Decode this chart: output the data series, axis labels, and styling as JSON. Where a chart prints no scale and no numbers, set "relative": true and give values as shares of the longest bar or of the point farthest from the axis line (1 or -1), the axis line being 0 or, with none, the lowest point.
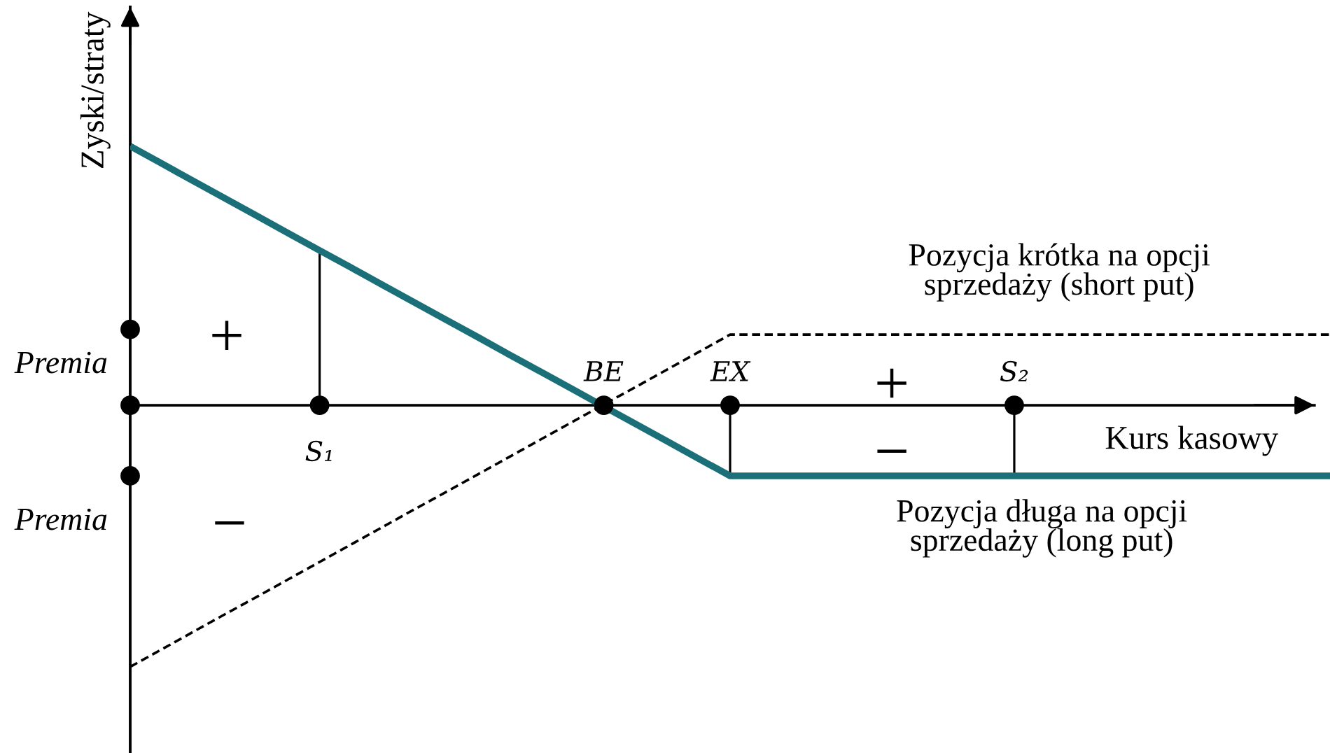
{
  "chart_data": {
    "type": "line",
    "relative": true,
    "xlabel": "Kurs kasowy",
    "ylabel": "Zyski/straty",
    "categories": [
      null,
      null,
      null,
      null,
      null,
      null,
      "S₁",
      null,
      null,
      null,
      null,
      null,
      null,
      null,
      null,
      "BE",
      null,
      null,
      null,
      "EX",
      null,
      null,
      null,
      null,
      null,
      null,
      null,
      null,
      "S₂",
      null,
      null,
      null,
      null,
      null,
      null,
      null,
      null,
      null,
      null
    ],
    "series": [
      {
        "name": "Pozycja długa na opcji\nsprzedaży (long put)",
        "color": "#1b6f78",
        "line_style": "solid",
        "values": [
          0.99,
          0.924,
          0.857,
          0.791,
          0.725,
          0.658,
          0.592,
          0.526,
          0.459,
          0.393,
          0.327,
          0.261,
          0.194,
          0.128,
          0.062,
          -0.005,
          -0.071,
          -0.137,
          -0.204,
          -0.27,
          -0.27,
          -0.27,
          -0.27,
          -0.27,
          -0.27,
          -0.27,
          -0.27,
          -0.27,
          -0.27,
          -0.27,
          -0.27,
          -0.27,
          -0.27,
          -0.27,
          -0.27,
          -0.27,
          -0.27,
          -0.27,
          -0.27
        ]
      },
      {
        "name": "Pozycja krótka na opcji\nsprzedaży (short put)",
        "color": "#000000",
        "line_style": "dashed",
        "values": [
          -1,
          -0.933,
          -0.866,
          -0.799,
          -0.733,
          -0.666,
          -0.599,
          -0.532,
          -0.465,
          -0.398,
          -0.332,
          -0.265,
          -0.198,
          -0.131,
          -0.064,
          0.003,
          0.069,
          0.136,
          0.203,
          0.27,
          0.27,
          0.27,
          0.27,
          0.27,
          0.27,
          0.27,
          0.27,
          0.27,
          0.27,
          0.27,
          0.27,
          0.27,
          0.27,
          0.27,
          0.27,
          0.27,
          0.27,
          0.27,
          0.27
        ]
      },
      {
        "type": "bar",
        "color": "#000000",
        "values": [
          null,
          null,
          null,
          null,
          null,
          null,
          0.59,
          null,
          null,
          null,
          null,
          null,
          null,
          null,
          null,
          null,
          null,
          null,
          null,
          -0.27,
          null,
          null,
          null,
          null,
          null,
          null,
          null,
          null,
          -0.27,
          null,
          null,
          null,
          null,
          null,
          null,
          null,
          null,
          null,
          null
        ]
      },
      {
        "type": "scatter",
        "color": "#000000",
        "marker": "circle",
        "values": [
          0,
          null,
          null,
          null,
          null,
          null,
          0,
          null,
          null,
          null,
          null,
          null,
          null,
          null,
          null,
          0,
          null,
          null,
          null,
          0,
          null,
          null,
          null,
          null,
          null,
          null,
          null,
          null,
          0,
          null,
          null,
          null,
          null,
          null,
          null,
          null,
          null,
          null,
          null
        ]
      },
      {
        "type": "scatter",
        "color": "#000000",
        "marker": "circle",
        "values": [
          0.29,
          null,
          null,
          null,
          null,
          null,
          null,
          null,
          null,
          null,
          null,
          null,
          null,
          null,
          null,
          null,
          null,
          null,
          null,
          null,
          null,
          null,
          null,
          null,
          null,
          null,
          null,
          null,
          null,
          null,
          null,
          null,
          null,
          null,
          null,
          null,
          null,
          null,
          null
        ]
      },
      {
        "type": "scatter",
        "color": "#000000",
        "marker": "circle",
        "values": [
          -0.27,
          null,
          null,
          null,
          null,
          null,
          null,
          null,
          null,
          null,
          null,
          null,
          null,
          null,
          null,
          null,
          null,
          null,
          null,
          null,
          null,
          null,
          null,
          null,
          null,
          null,
          null,
          null,
          null,
          null,
          null,
          null,
          null,
          null,
          null,
          null,
          null,
          null,
          null
        ]
      }
    ],
    "annotations": [
      "Premia",
      "Premia",
      "+",
      "−",
      "+",
      "−"
    ]
  }
}
